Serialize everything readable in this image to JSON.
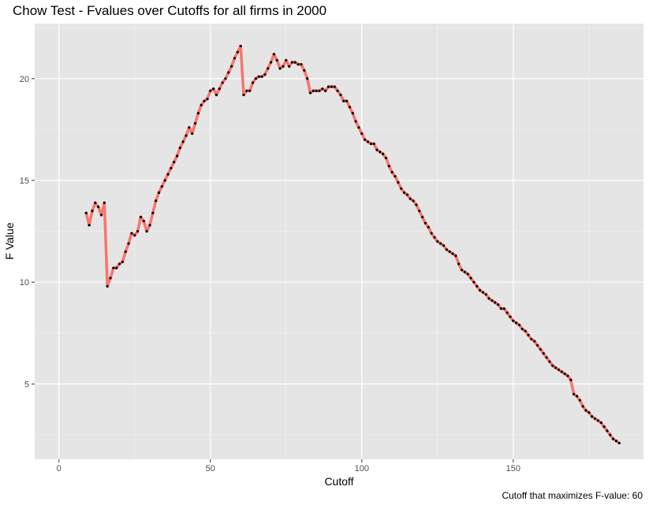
{
  "chart_data": {
    "type": "line",
    "title": "Chow Test - Fvalues over Cutoffs for all firms in 2000",
    "xlabel": "Cutoff",
    "ylabel": "F Value",
    "caption": "Cutoff that maximizes F-value: 60",
    "xlim": [
      -8,
      193
    ],
    "ylim": [
      1.3,
      22.7
    ],
    "x_ticks": [
      0,
      50,
      100,
      150
    ],
    "y_ticks": [
      5,
      10,
      15,
      20
    ],
    "x_tick_labels": [
      "0",
      "50",
      "100",
      "150"
    ],
    "y_tick_labels": [
      "5",
      "10",
      "15",
      "20"
    ],
    "grid": true,
    "line_color": "#f8766d",
    "point_color": "#000000",
    "panel_color": "#e5e5e5",
    "x": [
      9,
      10,
      11,
      12,
      13,
      14,
      15,
      16,
      17,
      18,
      19,
      20,
      21,
      22,
      23,
      24,
      25,
      26,
      27,
      28,
      29,
      30,
      31,
      32,
      33,
      34,
      35,
      36,
      37,
      38,
      39,
      40,
      41,
      42,
      43,
      44,
      45,
      46,
      47,
      48,
      49,
      50,
      51,
      52,
      53,
      54,
      55,
      56,
      57,
      58,
      59,
      60,
      61,
      62,
      63,
      64,
      65,
      66,
      67,
      68,
      69,
      70,
      71,
      72,
      73,
      74,
      75,
      76,
      77,
      78,
      79,
      80,
      81,
      82,
      83,
      84,
      85,
      86,
      87,
      88,
      89,
      90,
      91,
      92,
      93,
      94,
      95,
      96,
      97,
      98,
      99,
      100,
      101,
      102,
      103,
      104,
      105,
      106,
      107,
      108,
      109,
      110,
      111,
      112,
      113,
      114,
      115,
      116,
      117,
      118,
      119,
      120,
      121,
      122,
      123,
      124,
      125,
      126,
      127,
      128,
      129,
      130,
      131,
      132,
      133,
      134,
      135,
      136,
      137,
      138,
      139,
      140,
      141,
      142,
      143,
      144,
      145,
      146,
      147,
      148,
      149,
      150,
      151,
      152,
      153,
      154,
      155,
      156,
      157,
      158,
      159,
      160,
      161,
      162,
      163,
      164,
      165,
      166,
      167,
      168,
      169,
      170,
      171,
      172,
      173,
      174,
      175,
      176,
      177,
      178,
      179,
      180,
      181,
      182,
      183,
      184,
      185
    ],
    "y": [
      13.4,
      12.8,
      13.5,
      13.9,
      13.7,
      13.3,
      13.9,
      9.8,
      10.2,
      10.7,
      10.7,
      10.9,
      11.0,
      11.5,
      11.9,
      12.4,
      12.3,
      12.5,
      13.2,
      13.0,
      12.5,
      12.8,
      13.4,
      14.0,
      14.4,
      14.7,
      15.0,
      15.3,
      15.6,
      15.9,
      16.2,
      16.6,
      16.9,
      17.2,
      17.6,
      17.3,
      17.8,
      18.3,
      18.7,
      18.9,
      19.0,
      19.4,
      19.5,
      19.2,
      19.5,
      19.8,
      20.0,
      20.3,
      20.6,
      21.0,
      21.3,
      21.6,
      19.2,
      19.4,
      19.4,
      19.8,
      20.0,
      20.1,
      20.1,
      20.2,
      20.5,
      20.8,
      21.2,
      20.9,
      20.5,
      20.6,
      20.9,
      20.6,
      20.8,
      20.8,
      20.7,
      20.7,
      20.4,
      20.0,
      19.3,
      19.4,
      19.4,
      19.4,
      19.5,
      19.4,
      19.6,
      19.6,
      19.6,
      19.4,
      19.2,
      18.9,
      18.9,
      18.6,
      18.3,
      17.9,
      17.6,
      17.3,
      17.0,
      16.9,
      16.8,
      16.8,
      16.5,
      16.4,
      16.3,
      16.1,
      15.7,
      15.4,
      15.2,
      14.9,
      14.6,
      14.4,
      14.3,
      14.1,
      14.0,
      13.8,
      13.5,
      13.2,
      12.9,
      12.7,
      12.4,
      12.2,
      12.0,
      11.9,
      11.8,
      11.6,
      11.5,
      11.4,
      11.3,
      10.9,
      10.6,
      10.5,
      10.4,
      10.2,
      10.0,
      9.8,
      9.6,
      9.5,
      9.4,
      9.2,
      9.1,
      9.0,
      8.9,
      8.7,
      8.7,
      8.5,
      8.3,
      8.1,
      8.0,
      7.9,
      7.7,
      7.6,
      7.4,
      7.2,
      7.1,
      6.9,
      6.7,
      6.5,
      6.3,
      6.1,
      5.9,
      5.8,
      5.7,
      5.6,
      5.5,
      5.4,
      5.2,
      4.5,
      4.4,
      4.2,
      3.9,
      3.7,
      3.6,
      3.4,
      3.3,
      3.2,
      3.1,
      2.9,
      2.7,
      2.5,
      2.3,
      2.2,
      2.1
    ]
  }
}
